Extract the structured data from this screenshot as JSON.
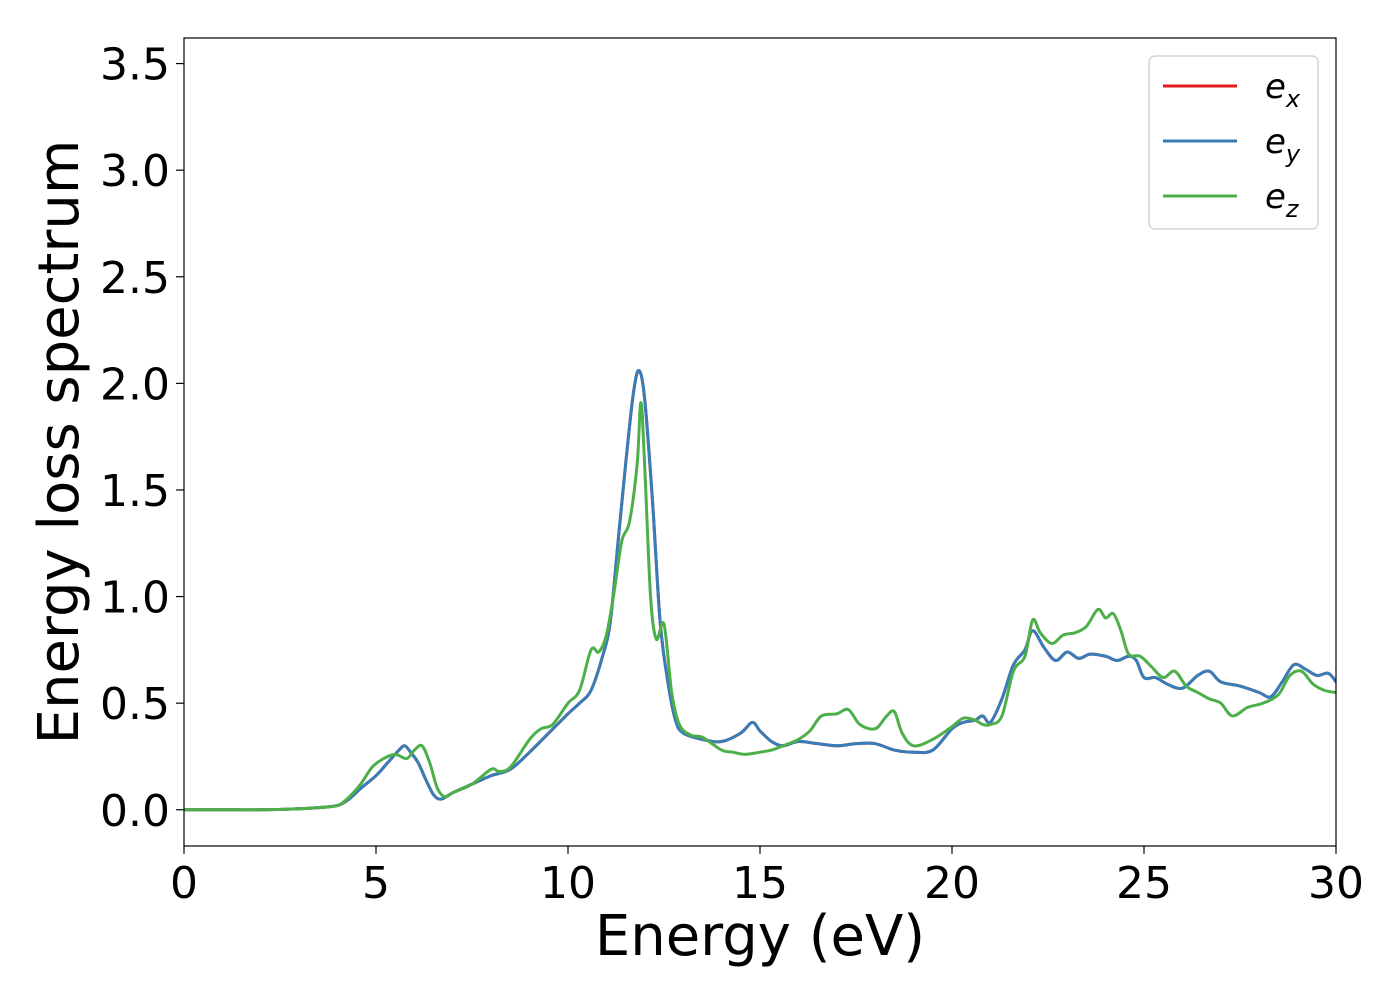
{
  "chart_data": {
    "type": "line",
    "title": "",
    "xlabel": "Energy (eV)",
    "ylabel": "Energy loss spectrum",
    "xlim": [
      0,
      30
    ],
    "ylim": [
      -0.17,
      3.62
    ],
    "xticks": [
      0,
      5,
      10,
      15,
      20,
      25,
      30
    ],
    "xtick_labels": [
      "0",
      "5",
      "10",
      "15",
      "20",
      "25",
      "30"
    ],
    "yticks": [
      0.0,
      0.5,
      1.0,
      1.5,
      2.0,
      2.5,
      3.0,
      3.5
    ],
    "ytick_labels": [
      "0.0",
      "0.5",
      "1.0",
      "1.5",
      "2.0",
      "2.5",
      "3.0",
      "3.5"
    ],
    "grid": false,
    "legend_position": "top-right",
    "series": [
      {
        "name": "e",
        "name_subscript": "x",
        "color": "#e41a1c",
        "x": [
          0,
          1,
          2,
          3,
          3.5,
          4,
          4.3,
          4.6,
          5,
          5.3,
          5.6,
          5.75,
          5.9,
          6.1,
          6.3,
          6.5,
          6.7,
          7,
          7.5,
          8,
          8.5,
          9,
          9.5,
          10,
          10.3,
          10.6,
          10.9,
          11.1,
          11.3,
          11.5,
          11.7,
          11.85,
          12,
          12.2,
          12.4,
          12.6,
          12.8,
          13,
          13.5,
          14,
          14.5,
          14.8,
          15,
          15.3,
          15.6,
          16,
          16.5,
          17,
          17.5,
          18,
          18.5,
          19,
          19.5,
          20,
          20.3,
          20.6,
          20.8,
          21,
          21.3,
          21.6,
          21.9,
          22.1,
          22.4,
          22.7,
          23,
          23.3,
          23.6,
          24,
          24.3,
          24.6,
          24.8,
          25,
          25.3,
          25.6,
          26,
          26.4,
          26.7,
          27,
          27.5,
          28,
          28.3,
          28.6,
          28.9,
          29.2,
          29.5,
          29.8,
          30
        ],
        "y": [
          0.0,
          0.0,
          0.0,
          0.005,
          0.01,
          0.02,
          0.05,
          0.1,
          0.16,
          0.22,
          0.28,
          0.3,
          0.27,
          0.22,
          0.14,
          0.07,
          0.05,
          0.08,
          0.12,
          0.16,
          0.19,
          0.27,
          0.36,
          0.45,
          0.5,
          0.56,
          0.72,
          0.88,
          1.25,
          1.62,
          1.95,
          2.06,
          1.92,
          1.45,
          0.88,
          0.6,
          0.42,
          0.36,
          0.33,
          0.32,
          0.36,
          0.41,
          0.37,
          0.32,
          0.3,
          0.32,
          0.31,
          0.3,
          0.31,
          0.31,
          0.28,
          0.27,
          0.28,
          0.38,
          0.41,
          0.42,
          0.44,
          0.41,
          0.52,
          0.68,
          0.75,
          0.84,
          0.76,
          0.7,
          0.74,
          0.71,
          0.73,
          0.72,
          0.7,
          0.72,
          0.7,
          0.62,
          0.62,
          0.59,
          0.57,
          0.63,
          0.65,
          0.6,
          0.58,
          0.55,
          0.53,
          0.6,
          0.68,
          0.66,
          0.63,
          0.64,
          0.6
        ]
      },
      {
        "name": "e",
        "name_subscript": "y",
        "color": "#377eb8",
        "x": [
          0,
          1,
          2,
          3,
          3.5,
          4,
          4.3,
          4.6,
          5,
          5.3,
          5.6,
          5.75,
          5.9,
          6.1,
          6.3,
          6.5,
          6.7,
          7,
          7.5,
          8,
          8.5,
          9,
          9.5,
          10,
          10.3,
          10.6,
          10.9,
          11.1,
          11.3,
          11.5,
          11.7,
          11.85,
          12,
          12.2,
          12.4,
          12.6,
          12.8,
          13,
          13.5,
          14,
          14.5,
          14.8,
          15,
          15.3,
          15.6,
          16,
          16.5,
          17,
          17.5,
          18,
          18.5,
          19,
          19.5,
          20,
          20.3,
          20.6,
          20.8,
          21,
          21.3,
          21.6,
          21.9,
          22.1,
          22.4,
          22.7,
          23,
          23.3,
          23.6,
          24,
          24.3,
          24.6,
          24.8,
          25,
          25.3,
          25.6,
          26,
          26.4,
          26.7,
          27,
          27.5,
          28,
          28.3,
          28.6,
          28.9,
          29.2,
          29.5,
          29.8,
          30
        ],
        "y": [
          0.0,
          0.0,
          0.0,
          0.005,
          0.01,
          0.02,
          0.05,
          0.1,
          0.16,
          0.22,
          0.28,
          0.3,
          0.27,
          0.22,
          0.14,
          0.07,
          0.05,
          0.08,
          0.12,
          0.16,
          0.19,
          0.27,
          0.36,
          0.45,
          0.5,
          0.56,
          0.72,
          0.88,
          1.25,
          1.62,
          1.95,
          2.06,
          1.92,
          1.45,
          0.88,
          0.6,
          0.42,
          0.36,
          0.33,
          0.32,
          0.36,
          0.41,
          0.37,
          0.32,
          0.3,
          0.32,
          0.31,
          0.3,
          0.31,
          0.31,
          0.28,
          0.27,
          0.28,
          0.38,
          0.41,
          0.42,
          0.44,
          0.41,
          0.52,
          0.68,
          0.75,
          0.84,
          0.76,
          0.7,
          0.74,
          0.71,
          0.73,
          0.72,
          0.7,
          0.72,
          0.7,
          0.62,
          0.62,
          0.59,
          0.57,
          0.63,
          0.65,
          0.6,
          0.58,
          0.55,
          0.53,
          0.6,
          0.68,
          0.66,
          0.63,
          0.64,
          0.6
        ]
      },
      {
        "name": "e",
        "name_subscript": "z",
        "color": "#4daf4a",
        "x": [
          0,
          1,
          2,
          3,
          3.5,
          4,
          4.3,
          4.6,
          4.9,
          5.2,
          5.5,
          5.8,
          6.0,
          6.2,
          6.4,
          6.6,
          6.8,
          7,
          7.5,
          8,
          8.2,
          8.5,
          9,
          9.3,
          9.6,
          10,
          10.3,
          10.6,
          10.8,
          11.0,
          11.2,
          11.4,
          11.6,
          11.8,
          11.9,
          12.0,
          12.15,
          12.3,
          12.5,
          12.7,
          12.9,
          13.2,
          13.5,
          14,
          14.3,
          14.6,
          15,
          15.3,
          15.6,
          16,
          16.3,
          16.6,
          17,
          17.3,
          17.6,
          18,
          18.3,
          18.5,
          18.7,
          19,
          19.5,
          20,
          20.3,
          20.6,
          20.8,
          21,
          21.3,
          21.6,
          21.9,
          22.1,
          22.3,
          22.6,
          22.9,
          23.2,
          23.5,
          23.8,
          24,
          24.2,
          24.4,
          24.6,
          24.9,
          25.2,
          25.5,
          25.8,
          26.1,
          26.4,
          26.7,
          27,
          27.3,
          27.7,
          28.1,
          28.5,
          28.8,
          29.1,
          29.4,
          29.7,
          30
        ],
        "y": [
          0.0,
          0.0,
          0.0,
          0.005,
          0.01,
          0.02,
          0.06,
          0.12,
          0.2,
          0.24,
          0.26,
          0.24,
          0.28,
          0.3,
          0.22,
          0.1,
          0.06,
          0.08,
          0.12,
          0.19,
          0.18,
          0.2,
          0.33,
          0.38,
          0.4,
          0.5,
          0.56,
          0.75,
          0.74,
          0.82,
          1.02,
          1.26,
          1.35,
          1.62,
          1.91,
          1.6,
          1.0,
          0.8,
          0.87,
          0.55,
          0.4,
          0.35,
          0.34,
          0.28,
          0.27,
          0.26,
          0.27,
          0.28,
          0.3,
          0.33,
          0.37,
          0.44,
          0.45,
          0.47,
          0.4,
          0.38,
          0.44,
          0.46,
          0.36,
          0.3,
          0.33,
          0.39,
          0.43,
          0.42,
          0.4,
          0.4,
          0.44,
          0.65,
          0.72,
          0.89,
          0.83,
          0.78,
          0.82,
          0.83,
          0.86,
          0.94,
          0.9,
          0.92,
          0.84,
          0.73,
          0.72,
          0.67,
          0.62,
          0.65,
          0.58,
          0.55,
          0.52,
          0.5,
          0.44,
          0.48,
          0.5,
          0.54,
          0.63,
          0.65,
          0.59,
          0.56,
          0.55
        ]
      }
    ]
  }
}
